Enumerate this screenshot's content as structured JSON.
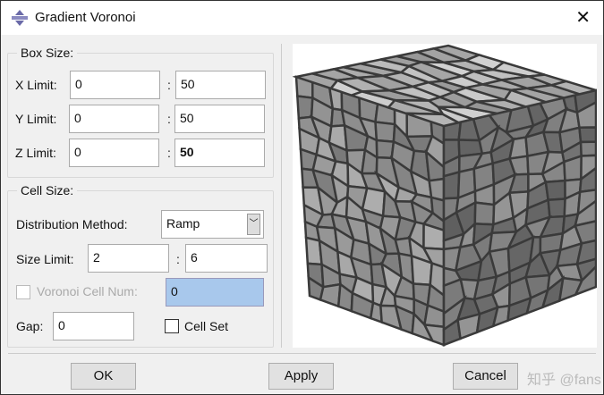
{
  "window": {
    "title": "Gradient Voronoi",
    "close_label": "✕"
  },
  "box_size": {
    "legend": "Box Size:",
    "rows": [
      {
        "label": "X Limit:",
        "min": "0",
        "max": "50"
      },
      {
        "label": "Y Limit:",
        "min": "0",
        "max": "50"
      },
      {
        "label": "Z Limit:",
        "min": "0",
        "max": "50"
      }
    ],
    "separator": ":"
  },
  "cell_size": {
    "legend": "Cell Size:",
    "distribution_label": "Distribution Method:",
    "distribution_value": "Ramp",
    "size_limit_label": "Size Limit:",
    "size_min": "2",
    "size_max": "6",
    "voronoi_cell_num_label": "Voronoi Cell Num:",
    "voronoi_cell_num": "0",
    "voronoi_checked": false,
    "gap_label": "Gap:",
    "gap": "0",
    "cell_set_label": "Cell Set",
    "cell_set_checked": false
  },
  "buttons": {
    "ok": "OK",
    "apply": "Apply",
    "cancel": "Cancel"
  },
  "watermark": "知乎 @fans",
  "preview": {
    "icon": "voronoi-cube-3d"
  }
}
